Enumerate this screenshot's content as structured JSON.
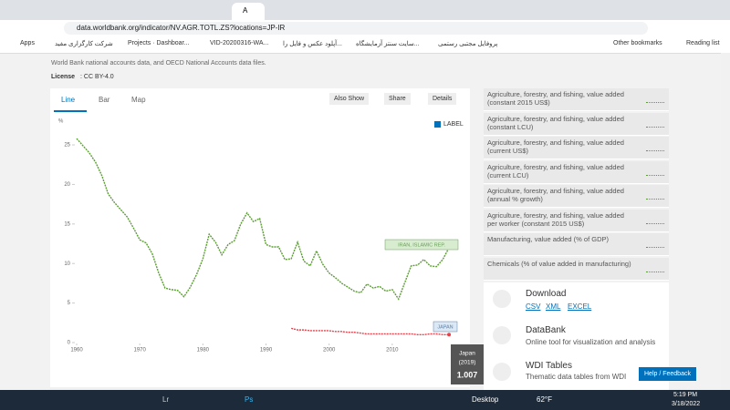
{
  "browser": {
    "address": "data.worldbank.org/indicator/NV.AGR.TOTL.ZS?locations=JP-IR",
    "active_tab": "A",
    "bookmarks": [
      "Apps",
      "شرکت کارگزاری مفید",
      "Projects · Dashboar...",
      "VID-20200316-WA...",
      "آپلود عکس و فایل را...",
      "سایت سنتز آزمایشگاه...",
      "پروفایل مجتبی رستمی",
      "Other bookmarks",
      "Reading list"
    ]
  },
  "page": {
    "source": "World Bank national accounts data, and OECD National Accounts data files.",
    "license_label": "License",
    "license": ": CC BY-4.0",
    "tabs": [
      "Line",
      "Bar",
      "Map"
    ],
    "buttons": [
      "Also Show",
      "Share",
      "Details"
    ],
    "label_toggle": "LABEL"
  },
  "chart_data": {
    "type": "line",
    "y_label": "%",
    "x": [
      1960,
      1961,
      1962,
      1963,
      1964,
      1965,
      1966,
      1967,
      1968,
      1969,
      1970,
      1971,
      1972,
      1973,
      1974,
      1975,
      1976,
      1977,
      1978,
      1979,
      1980,
      1981,
      1982,
      1983,
      1984,
      1985,
      1986,
      1987,
      1988,
      1989,
      1990,
      1991,
      1992,
      1993,
      1994,
      1995,
      1996,
      1997,
      1998,
      1999,
      2000,
      2001,
      2002,
      2003,
      2004,
      2005,
      2006,
      2007,
      2008,
      2009,
      2010,
      2011,
      2012,
      2013,
      2014,
      2015,
      2016,
      2017,
      2018,
      2019
    ],
    "series": [
      {
        "name": "IRAN, ISLAMIC REP.",
        "color": "#5a9e32",
        "values": [
          25.8,
          24.9,
          24.0,
          22.8,
          21.1,
          18.8,
          17.7,
          16.8,
          15.9,
          14.5,
          13.0,
          12.6,
          11.2,
          8.8,
          6.9,
          6.7,
          6.6,
          5.8,
          7.0,
          8.6,
          10.6,
          13.7,
          12.7,
          11.1,
          12.4,
          12.9,
          15.0,
          16.4,
          15.3,
          15.7,
          12.4,
          12.1,
          12.1,
          10.5,
          10.6,
          12.7,
          10.3,
          9.7,
          11.6,
          9.9,
          8.8,
          8.2,
          7.5,
          7.0,
          6.5,
          6.3,
          7.4,
          6.9,
          7.1,
          6.5,
          6.7,
          5.5,
          7.6,
          9.7,
          9.8,
          10.5,
          9.7,
          9.6,
          10.5,
          12.0
        ]
      },
      {
        "name": "JAPAN",
        "color": "#e8414a",
        "values": [
          null,
          null,
          null,
          null,
          null,
          null,
          null,
          null,
          null,
          null,
          null,
          null,
          null,
          null,
          null,
          null,
          null,
          null,
          null,
          null,
          null,
          null,
          null,
          null,
          null,
          null,
          null,
          null,
          null,
          null,
          null,
          null,
          null,
          null,
          1.8,
          1.6,
          1.6,
          1.5,
          1.5,
          1.5,
          1.5,
          1.4,
          1.4,
          1.3,
          1.3,
          1.2,
          1.1,
          1.1,
          1.1,
          1.1,
          1.1,
          1.1,
          1.1,
          1.1,
          1.0,
          1.0,
          1.1,
          1.1,
          1.0,
          1.007
        ]
      }
    ],
    "xlim": [
      1960,
      2020
    ],
    "ylim": [
      0,
      28
    ],
    "xticks": [
      1960,
      1970,
      1980,
      1990,
      2000,
      2010
    ],
    "yticks": [
      0,
      5,
      10,
      15,
      20,
      25
    ],
    "tooltip": {
      "name": "Japan",
      "year": "(2019)"
    }
  },
  "sidebar": {
    "items": [
      [
        "Agriculture, forestry, and fishing, value added",
        "(constant 2015 US$)"
      ],
      [
        "Agriculture, forestry, and fishing, value added",
        "(constant LCU)"
      ],
      [
        "Agriculture, forestry, and fishing, value added",
        "(current US$)"
      ],
      [
        "Agriculture, forestry, and fishing, value added",
        "(current LCU)"
      ],
      [
        "Agriculture, forestry, and fishing, value added",
        "(annual % growth)"
      ],
      [
        "Agriculture, forestry, and fishing, value added",
        "per worker (constant 2015 US$)"
      ],
      [
        "Manufacturing, value added (% of GDP)"
      ],
      [
        "Chemicals (% of value added in manufacturing)"
      ]
    ],
    "download": {
      "title": "Download",
      "links": [
        "CSV",
        "XML",
        "EXCEL"
      ]
    },
    "databank": {
      "title": "DataBank",
      "desc": "Online tool for visualization and analysis"
    },
    "wdi": {
      "title": "WDI Tables",
      "desc": "Thematic data tables from WDI"
    },
    "help": "Help / Feedback"
  },
  "taskbar": {
    "apps": [
      "Lr",
      "Ps"
    ],
    "desktop": "Desktop",
    "weather": "62°F",
    "time": "5:19 PM",
    "date": "3/18/2022"
  }
}
